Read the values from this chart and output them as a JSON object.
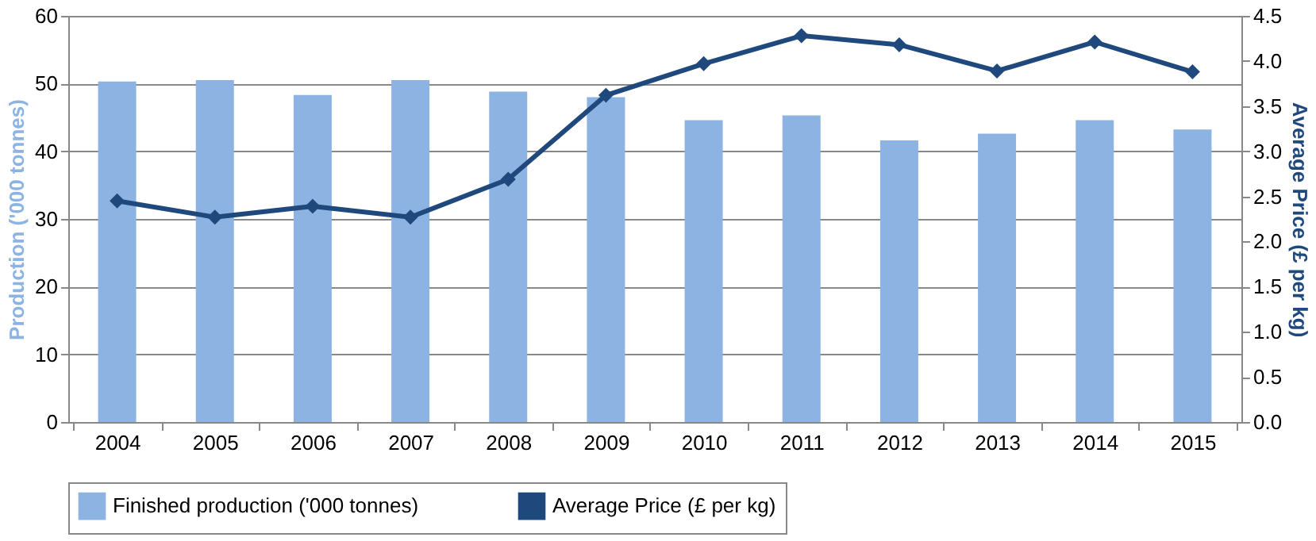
{
  "chart_data": {
    "type": "bar",
    "categories": [
      "2004",
      "2005",
      "2006",
      "2007",
      "2008",
      "2009",
      "2010",
      "2011",
      "2012",
      "2013",
      "2014",
      "2015"
    ],
    "ylabel": "Production ('000 tonnes)",
    "y2label": "Average Price (£ per kg)",
    "ylim": [
      0,
      60
    ],
    "yticks": [
      0,
      10,
      20,
      30,
      40,
      50,
      60
    ],
    "y2lim": [
      0,
      4.5
    ],
    "y2ticks": [
      {
        "value": 0,
        "label": "0.0"
      },
      {
        "value": 0.5,
        "label": "0.5"
      },
      {
        "value": 1,
        "label": "1.0"
      },
      {
        "value": 1.5,
        "label": "1.5"
      },
      {
        "value": 2,
        "label": "2.0"
      },
      {
        "value": 2.5,
        "label": "2.5"
      },
      {
        "value": 3,
        "label": "3.0"
      },
      {
        "value": 3.5,
        "label": "3.5"
      },
      {
        "value": 4,
        "label": "4.0"
      },
      {
        "value": 4.5,
        "label": "4.5"
      }
    ],
    "grid": "y",
    "legend": "bottom",
    "series": [
      {
        "name": "Finished production ('000 tonnes)",
        "color": "#8db3e2",
        "values": [
          50.3,
          50.5,
          48.3,
          50.5,
          48.8,
          48.0,
          44.6,
          45.3,
          41.6,
          42.6,
          44.6,
          43.2
        ]
      },
      {
        "name": "Average Price (£ per kg)",
        "color": "#1f497d",
        "type": "line",
        "axis": "y2",
        "marker": "diamond",
        "values": [
          2.45,
          2.27,
          2.39,
          2.27,
          2.69,
          3.62,
          3.97,
          4.28,
          4.18,
          3.89,
          4.21,
          3.88
        ]
      }
    ]
  }
}
